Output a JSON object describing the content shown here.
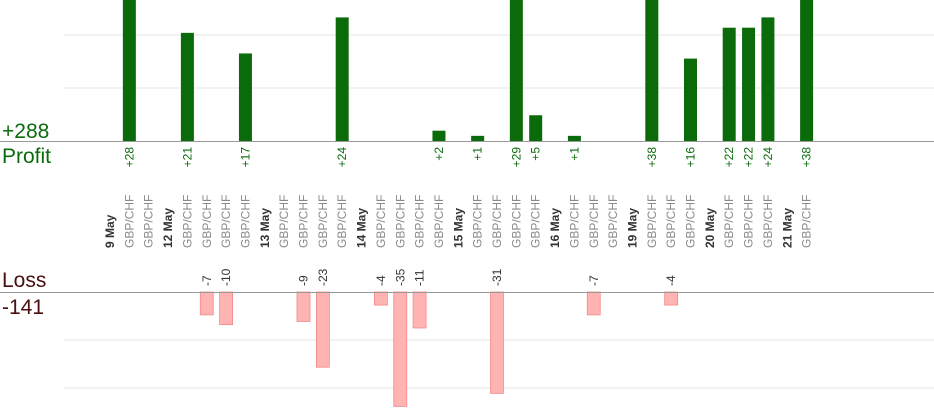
{
  "chart_data": {
    "type": "bar",
    "profit_label": "Profit",
    "profit_total": "+288",
    "loss_label": "Loss",
    "loss_total": "-141",
    "grid": true,
    "colors": {
      "profit_bar": "#0b6b0b",
      "profit_text": "#0b6b0b",
      "loss_bar": "#ffb3b3",
      "loss_text": "#4a0f0f",
      "axis": "#999999",
      "grid": "#e6e6e6"
    },
    "categories": [
      {
        "type": "day",
        "label": "9 May"
      },
      {
        "type": "trade",
        "label": "GBP/CHF",
        "value": 28
      },
      {
        "type": "trade",
        "label": "GBP/CHF",
        "value": 0
      },
      {
        "type": "day",
        "label": "12 May"
      },
      {
        "type": "trade",
        "label": "GBP/CHF",
        "value": 21
      },
      {
        "type": "trade",
        "label": "GBP/CHF",
        "value": -7
      },
      {
        "type": "trade",
        "label": "GBP/CHF",
        "value": -10
      },
      {
        "type": "trade",
        "label": "GBP/CHF",
        "value": 17
      },
      {
        "type": "day",
        "label": "13 May"
      },
      {
        "type": "trade",
        "label": "GBP/CHF",
        "value": 0
      },
      {
        "type": "trade",
        "label": "GBP/CHF",
        "value": -9
      },
      {
        "type": "trade",
        "label": "GBP/CHF",
        "value": -23
      },
      {
        "type": "trade",
        "label": "GBP/CHF",
        "value": 24
      },
      {
        "type": "day",
        "label": "14 May"
      },
      {
        "type": "trade",
        "label": "GBP/CHF",
        "value": -4
      },
      {
        "type": "trade",
        "label": "GBP/CHF",
        "value": -35
      },
      {
        "type": "trade",
        "label": "GBP/CHF",
        "value": -11
      },
      {
        "type": "trade",
        "label": "GBP/CHF",
        "value": 2
      },
      {
        "type": "day",
        "label": "15 May"
      },
      {
        "type": "trade",
        "label": "GBP/CHF",
        "value": 1
      },
      {
        "type": "trade",
        "label": "GBP/CHF",
        "value": -31
      },
      {
        "type": "trade",
        "label": "GBP/CHF",
        "value": 29
      },
      {
        "type": "trade",
        "label": "GBP/CHF",
        "value": 5
      },
      {
        "type": "day",
        "label": "16 May"
      },
      {
        "type": "trade",
        "label": "GBP/CHF",
        "value": 1
      },
      {
        "type": "trade",
        "label": "GBP/CHF",
        "value": -7
      },
      {
        "type": "trade",
        "label": "GBP/CHF",
        "value": 0
      },
      {
        "type": "day",
        "label": "19 May"
      },
      {
        "type": "trade",
        "label": "GBP/CHF",
        "value": 38
      },
      {
        "type": "trade",
        "label": "GBP/CHF",
        "value": -4
      },
      {
        "type": "trade",
        "label": "GBP/CHF",
        "value": 16
      },
      {
        "type": "day",
        "label": "20 May"
      },
      {
        "type": "trade",
        "label": "GBP/CHF",
        "value": 22
      },
      {
        "type": "trade",
        "label": "GBP/CHF",
        "value": 22
      },
      {
        "type": "trade",
        "label": "GBP/CHF",
        "value": 24
      },
      {
        "type": "day",
        "label": "21 May"
      },
      {
        "type": "trade",
        "label": "GBP/CHF",
        "value": 38
      }
    ]
  }
}
